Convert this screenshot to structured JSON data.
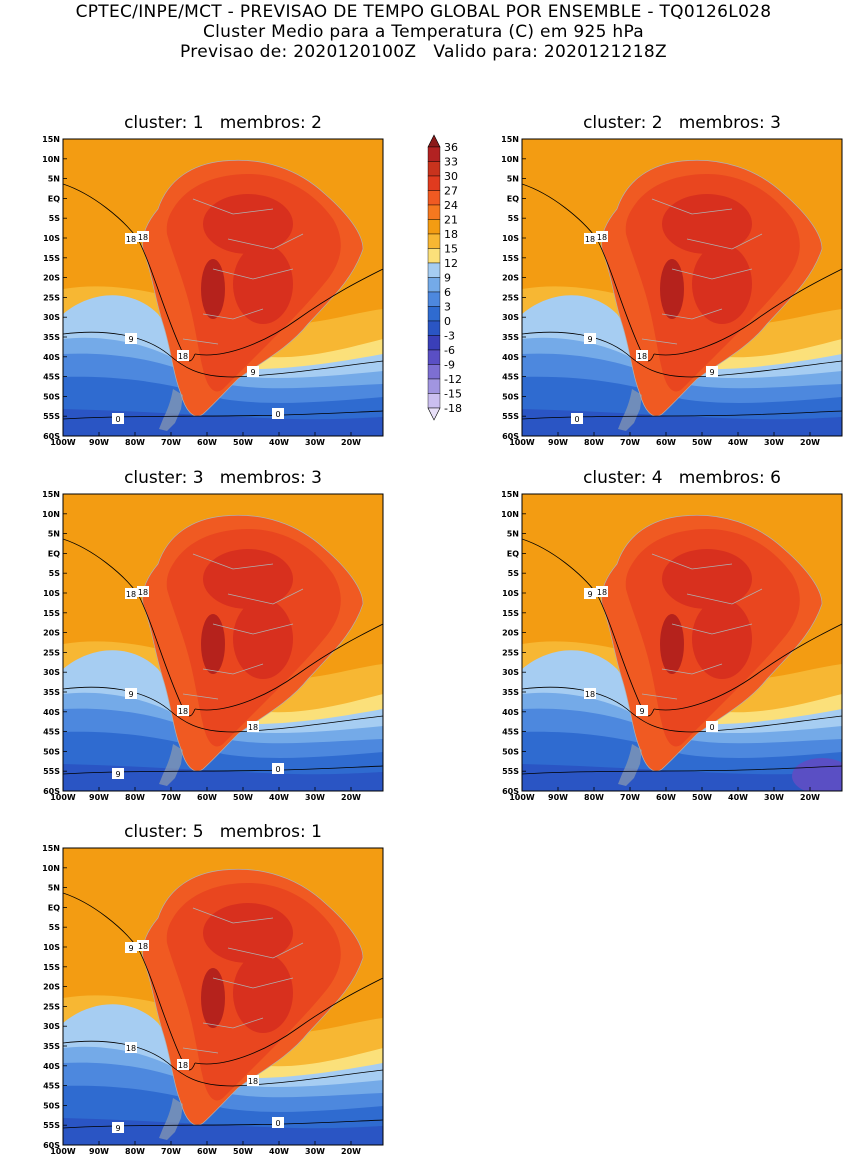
{
  "header": {
    "line1": "CPTEC/INPE/MCT - PREVISAO DE TEMPO GLOBAL POR ENSEMBLE - TQ0126L028",
    "line2": "Cluster Medio para a Temperatura (C) em 925 hPa",
    "line3": "Previsao de: 2020120100Z   Valido para: 2020121218Z"
  },
  "axes": {
    "lat_labels": [
      "15N",
      "10N",
      "5N",
      "EQ",
      "5S",
      "10S",
      "15S",
      "20S",
      "25S",
      "30S",
      "35S",
      "40S",
      "45S",
      "50S",
      "55S",
      "60S"
    ],
    "lon_labels": [
      "100W",
      "90W",
      "80W",
      "70W",
      "60W",
      "50W",
      "40W",
      "30W",
      "20W"
    ]
  },
  "colorbar": {
    "labels": [
      "36",
      "33",
      "30",
      "27",
      "24",
      "21",
      "18",
      "15",
      "12",
      "9",
      "6",
      "3",
      "0",
      "-3",
      "-6",
      "-9",
      "-12",
      "-15",
      "-18"
    ],
    "colors": [
      "#8b1a1a",
      "#b22222",
      "#c9331d",
      "#e03b1f",
      "#f05a22",
      "#f5781f",
      "#f39c12",
      "#f7b733",
      "#fbe07a",
      "#a6cdf2",
      "#74aae8",
      "#4d88de",
      "#2f6bd0",
      "#2a55c4",
      "#3a3fb8",
      "#5a4fc4",
      "#7d6fd2",
      "#a195e0",
      "#cbbff0",
      "#e8e0f8"
    ]
  },
  "panels": [
    {
      "title": "cluster: 1   membros: 2",
      "labels": [
        "18",
        "18",
        "9",
        "18",
        "9",
        "0",
        "0"
      ]
    },
    {
      "title": "cluster: 2   membros: 3",
      "labels": [
        "18",
        "18",
        "9",
        "18",
        "9",
        "0"
      ]
    },
    {
      "title": "cluster: 3   membros: 3",
      "labels": [
        "18",
        "18",
        "9",
        "18",
        "18",
        "9",
        "0"
      ]
    },
    {
      "title": "cluster: 4   membros: 6",
      "labels": [
        "18",
        "9",
        "18",
        "9",
        "0"
      ]
    },
    {
      "title": "cluster: 5   membros: 1",
      "labels": [
        "18",
        "9",
        "18",
        "18",
        "18",
        "9",
        "0"
      ]
    }
  ]
}
